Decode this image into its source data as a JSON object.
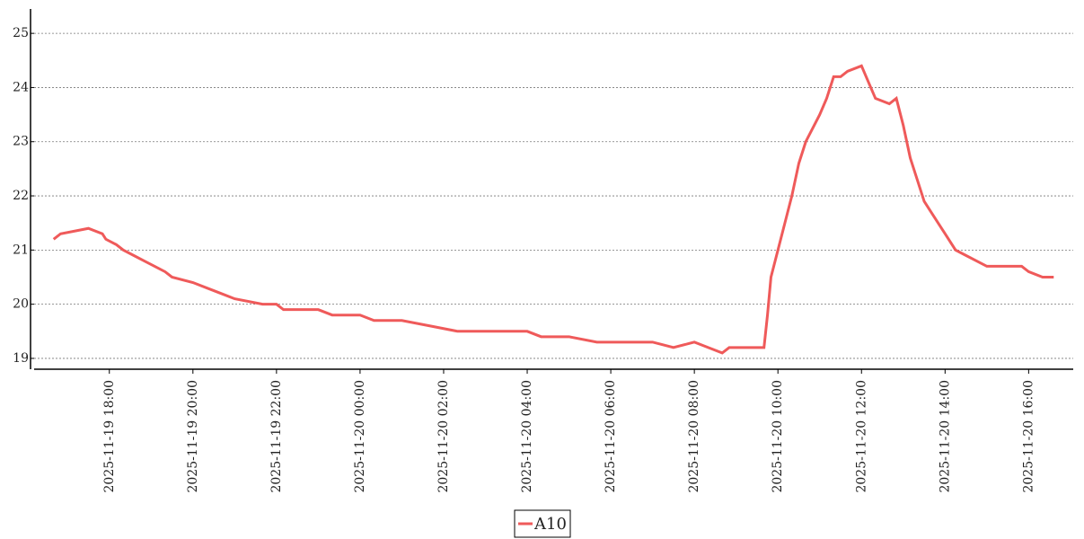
{
  "chart_data": {
    "type": "line",
    "x": [
      "2025-11-19 16:40",
      "2025-11-19 16:50",
      "2025-11-19 17:30",
      "2025-11-19 17:50",
      "2025-11-19 17:55",
      "2025-11-19 18:10",
      "2025-11-19 18:20",
      "2025-11-19 18:35",
      "2025-11-19 18:50",
      "2025-11-19 19:05",
      "2025-11-19 19:20",
      "2025-11-19 19:30",
      "2025-11-19 20:00",
      "2025-11-19 20:20",
      "2025-11-19 20:40",
      "2025-11-19 21:00",
      "2025-11-19 21:40",
      "2025-11-19 22:00",
      "2025-11-19 22:10",
      "2025-11-19 23:00",
      "2025-11-19 23:20",
      "2025-11-20 00:00",
      "2025-11-20 00:20",
      "2025-11-20 01:00",
      "2025-11-20 01:40",
      "2025-11-20 02:20",
      "2025-11-20 03:00",
      "2025-11-20 04:00",
      "2025-11-20 04:20",
      "2025-11-20 05:00",
      "2025-11-20 05:40",
      "2025-11-20 06:40",
      "2025-11-20 07:00",
      "2025-11-20 07:30",
      "2025-11-20 08:00",
      "2025-11-20 08:20",
      "2025-11-20 08:40",
      "2025-11-20 08:50",
      "2025-11-20 09:40",
      "2025-11-20 09:45",
      "2025-11-20 09:50",
      "2025-11-20 10:00",
      "2025-11-20 10:10",
      "2025-11-20 10:20",
      "2025-11-20 10:30",
      "2025-11-20 10:40",
      "2025-11-20 11:00",
      "2025-11-20 11:10",
      "2025-11-20 11:20",
      "2025-11-20 11:30",
      "2025-11-20 11:40",
      "2025-11-20 12:00",
      "2025-11-20 12:10",
      "2025-11-20 12:20",
      "2025-11-20 12:40",
      "2025-11-20 12:50",
      "2025-11-20 13:00",
      "2025-11-20 13:10",
      "2025-11-20 13:20",
      "2025-11-20 13:30",
      "2025-11-20 13:40",
      "2025-11-20 14:00",
      "2025-11-20 14:15",
      "2025-11-20 14:30",
      "2025-11-20 15:00",
      "2025-11-20 15:30",
      "2025-11-20 15:50",
      "2025-11-20 16:00",
      "2025-11-20 16:20",
      "2025-11-20 16:36"
    ],
    "series": [
      {
        "name": "A10",
        "color": "#ef5a5a",
        "values": [
          21.2,
          21.3,
          21.4,
          21.3,
          21.2,
          21.1,
          21.0,
          20.9,
          20.8,
          20.7,
          20.6,
          20.5,
          20.4,
          20.3,
          20.2,
          20.1,
          20.0,
          20.0,
          19.9,
          19.9,
          19.8,
          19.8,
          19.7,
          19.7,
          19.6,
          19.5,
          19.5,
          19.5,
          19.4,
          19.4,
          19.3,
          19.3,
          19.3,
          19.2,
          19.3,
          19.2,
          19.1,
          19.2,
          19.2,
          19.8,
          20.5,
          21.0,
          21.5,
          22.0,
          22.6,
          23.0,
          23.5,
          23.8,
          24.2,
          24.2,
          24.3,
          24.4,
          24.1,
          23.8,
          23.7,
          23.8,
          23.3,
          22.7,
          22.3,
          21.9,
          21.7,
          21.3,
          21.0,
          20.9,
          20.7,
          20.7,
          20.7,
          20.6,
          20.5,
          20.5
        ]
      }
    ],
    "xlim": [
      "2025-11-19 16:12",
      "2025-11-20 17:04"
    ],
    "xticks": [
      "2025-11-19 18:00",
      "2025-11-19 20:00",
      "2025-11-19 22:00",
      "2025-11-20 00:00",
      "2025-11-20 02:00",
      "2025-11-20 04:00",
      "2025-11-20 06:00",
      "2025-11-20 08:00",
      "2025-11-20 10:00",
      "2025-11-20 12:00",
      "2025-11-20 14:00",
      "2025-11-20 16:00"
    ],
    "ylim": [
      18.8,
      25.45
    ],
    "yticks": [
      19,
      20,
      21,
      22,
      23,
      24,
      25
    ],
    "grid": true,
    "legend": "bottom"
  }
}
